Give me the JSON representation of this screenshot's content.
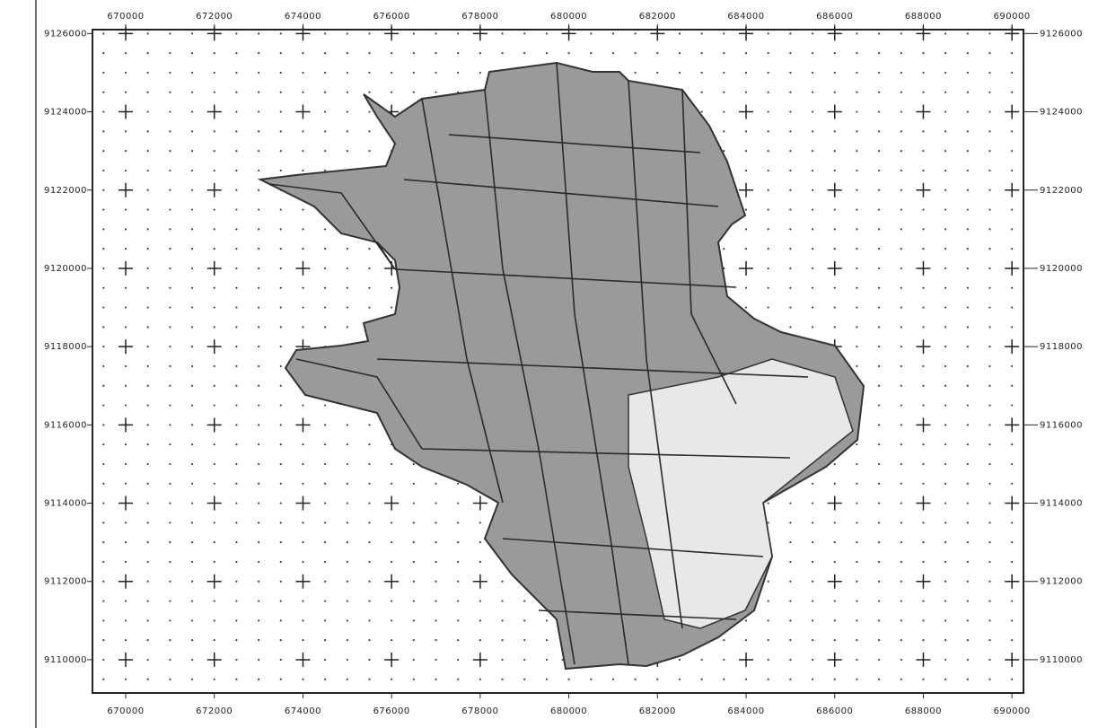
{
  "map": {
    "xlim": [
      669250,
      690260
    ],
    "ylim": [
      9109150,
      9126100
    ],
    "xticks": [
      670000,
      672000,
      674000,
      676000,
      678000,
      680000,
      682000,
      684000,
      686000,
      688000,
      690000
    ],
    "yticks": [
      9126000,
      9124000,
      9122000,
      9120000,
      9118000,
      9116000,
      9114000,
      9112000,
      9110000
    ]
  }
}
